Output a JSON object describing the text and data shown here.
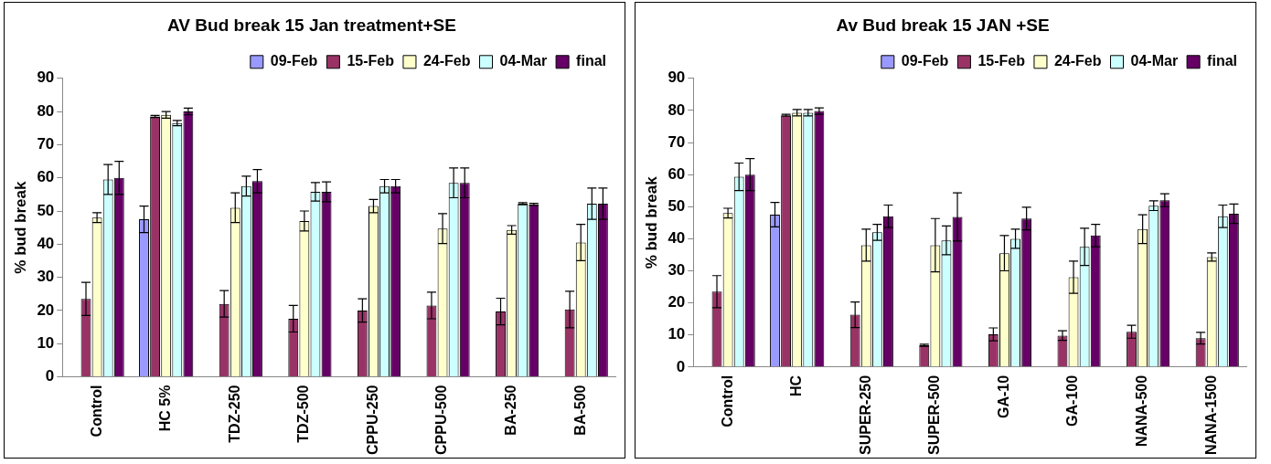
{
  "chart_data": [
    {
      "type": "bar",
      "title": "AV Bud break 15 Jan treatment+SE",
      "ylabel": "% bud break",
      "categories": [
        "Control",
        "HC 5%",
        "TDZ-250",
        "TDZ-500",
        "CPPU-250",
        "CPPU-500",
        "BA-250",
        "BA-500"
      ],
      "ylim": [
        0,
        90
      ],
      "yticks": [
        0,
        10,
        20,
        30,
        40,
        50,
        60,
        70,
        80,
        90
      ],
      "grid": false,
      "legend": "top right",
      "series": [
        {
          "name": "09-Feb",
          "color": "#9999ff",
          "values": [
            0,
            47.5,
            0,
            0,
            0,
            0,
            0,
            0
          ],
          "errors": [
            null,
            4,
            null,
            null,
            null,
            null,
            null,
            null
          ]
        },
        {
          "name": "15-Feb",
          "color": "#993366",
          "values": [
            23.5,
            78.5,
            22,
            17.5,
            20,
            21.5,
            19.7,
            20.3
          ],
          "errors": [
            5,
            0.3,
            4,
            4,
            3.5,
            4,
            4,
            5.5
          ]
        },
        {
          "name": "24-Feb",
          "color": "#ffffcc",
          "values": [
            48,
            79,
            51,
            47,
            51.5,
            44.7,
            44.3,
            40.5
          ],
          "errors": [
            1.5,
            1,
            4.5,
            3,
            2,
            4.5,
            1.3,
            5.5
          ]
        },
        {
          "name": "04-Mar",
          "color": "#ccffff",
          "values": [
            59.5,
            76.5,
            57.5,
            55.8,
            57.5,
            58.5,
            52.2,
            52.2
          ],
          "errors": [
            4.5,
            0.8,
            3,
            2.8,
            2,
            4.5,
            0.3,
            4.7
          ]
        },
        {
          "name": "final",
          "color": "#660066",
          "values": [
            60,
            80,
            59,
            55.8,
            57.5,
            58.5,
            52,
            52.2
          ],
          "errors": [
            5,
            1,
            3.5,
            3,
            2,
            4.5,
            0.3,
            4.7
          ]
        }
      ]
    },
    {
      "type": "bar",
      "title": "Av Bud break 15 JAN +SE",
      "ylabel": "% bud break",
      "categories": [
        "Control",
        "HC",
        "SUPER-250",
        "SUPER-500",
        "GA-10",
        "GA-100",
        "NANA-500",
        "NANA-1500"
      ],
      "ylim": [
        0,
        90
      ],
      "yticks": [
        0,
        10,
        20,
        30,
        40,
        50,
        60,
        70,
        80,
        90
      ],
      "grid": false,
      "legend": "top right",
      "series": [
        {
          "name": "09-Feb",
          "color": "#9999ff",
          "values": [
            0,
            47.5,
            0,
            0,
            0,
            0,
            0,
            0
          ],
          "errors": [
            null,
            3.8,
            null,
            null,
            null,
            null,
            null,
            null
          ]
        },
        {
          "name": "15-Feb",
          "color": "#993366",
          "values": [
            23.5,
            78.5,
            16.3,
            6.8,
            10.2,
            9.8,
            11,
            9
          ],
          "errors": [
            5,
            0.3,
            4,
            0.3,
            2,
            1.5,
            2,
            1.8
          ]
        },
        {
          "name": "24-Feb",
          "color": "#ffffcc",
          "values": [
            48,
            79.3,
            38,
            38,
            35.5,
            28,
            43,
            34.3
          ],
          "errors": [
            1.5,
            1,
            5,
            8.3,
            5.5,
            5,
            4.5,
            1.3
          ]
        },
        {
          "name": "04-Mar",
          "color": "#ccffff",
          "values": [
            59.3,
            79.3,
            42,
            39.5,
            40,
            37.5,
            50.3,
            47
          ],
          "errors": [
            4.3,
            1,
            2.5,
            4.5,
            3,
            5.8,
            1.5,
            3.5
          ]
        },
        {
          "name": "final",
          "color": "#660066",
          "values": [
            60,
            79.8,
            47,
            46.8,
            46.3,
            41,
            52,
            47.8
          ],
          "errors": [
            5,
            1,
            3.5,
            7.5,
            3.5,
            3.5,
            2,
            3
          ]
        }
      ]
    }
  ]
}
